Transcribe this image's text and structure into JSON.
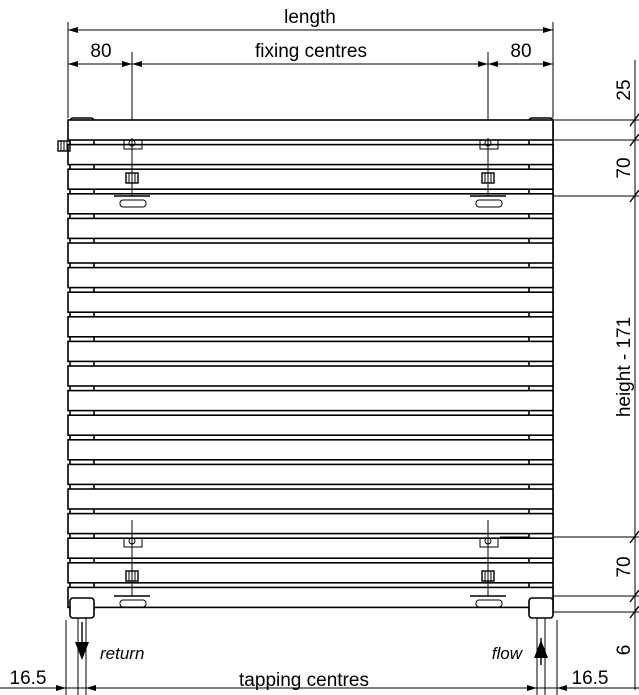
{
  "dimensions": {
    "length": "length",
    "left_offset": "80",
    "fixing_centres": "fixing centres",
    "right_offset": "80",
    "top_offset": "25",
    "top_bracket_spacing": "70",
    "height": "height - 171",
    "bottom_bracket_spacing": "70",
    "bottom_offset": "6",
    "left_tapping_offset": "16.5",
    "tapping_centres": "tapping centres",
    "right_tapping_offset": "16.5"
  },
  "connections": {
    "return_label": "return",
    "flow_label": "flow"
  },
  "radiator": {
    "bar_count": 20
  }
}
